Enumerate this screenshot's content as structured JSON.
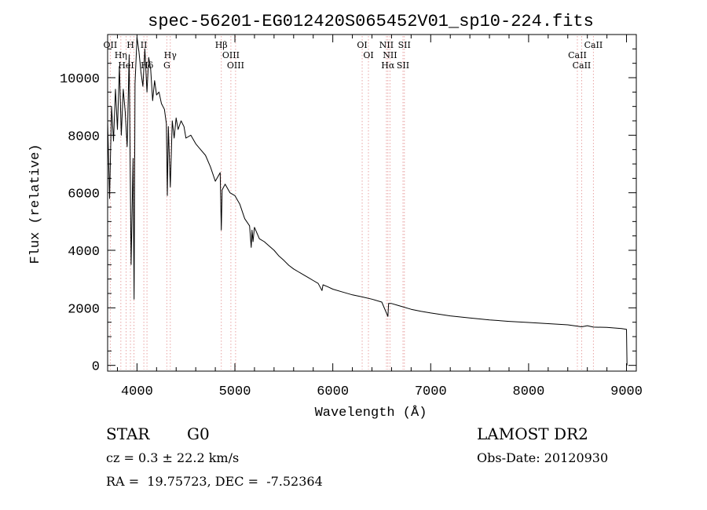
{
  "chart_data": {
    "type": "line",
    "title": "spec-56201-EG012420S065452V01_sp10-224.fits",
    "xlabel": "Wavelength (Å)",
    "ylabel": "Flux (relative)",
    "xlim": [
      3700,
      9100
    ],
    "ylim": [
      -200,
      11500
    ],
    "x_ticks": [
      4000,
      5000,
      6000,
      7000,
      8000,
      9000
    ],
    "x_tick_labels": [
      "4000",
      "5000",
      "6000",
      "7000",
      "8000",
      "9000"
    ],
    "y_ticks": [
      0,
      2000,
      4000,
      6000,
      8000,
      10000
    ],
    "y_tick_labels": [
      "0",
      "2000",
      "4000",
      "6000",
      "8000",
      "10000"
    ],
    "grid": false,
    "series": [
      {
        "x": [
          3700,
          3720,
          3740,
          3760,
          3780,
          3800,
          3820,
          3840,
          3860,
          3880,
          3900,
          3920,
          3940,
          3960,
          3970,
          3980,
          4000,
          4020,
          4040,
          4060,
          4080,
          4102,
          4120,
          4140,
          4160,
          4180,
          4200,
          4225,
          4250,
          4280,
          4300,
          4310,
          4320,
          4340,
          4360,
          4380,
          4400,
          4420,
          4450,
          4480,
          4500,
          4550,
          4600,
          4650,
          4700,
          4750,
          4800,
          4850,
          4861,
          4870,
          4900,
          4950,
          5000,
          5050,
          5100,
          5150,
          5167,
          5175,
          5185,
          5200,
          5250,
          5300,
          5350,
          5400,
          5450,
          5500,
          5550,
          5600,
          5650,
          5700,
          5750,
          5800,
          5850,
          5890,
          5900,
          5950,
          6000,
          6100,
          6200,
          6300,
          6400,
          6500,
          6563,
          6570,
          6600,
          6700,
          6800,
          6900,
          7000,
          7200,
          7400,
          7600,
          7800,
          8000,
          8200,
          8400,
          8542,
          8600,
          8662,
          8800,
          8950,
          9000,
          9005
        ],
        "y": [
          8500,
          5800,
          9000,
          7800,
          9600,
          8200,
          10400,
          8000,
          9600,
          8800,
          7600,
          10800,
          3500,
          7200,
          2300,
          9800,
          11400,
          10900,
          10200,
          9700,
          11000,
          9500,
          10700,
          10300,
          9200,
          9900,
          9400,
          9500,
          9100,
          8900,
          8400,
          5900,
          8300,
          6200,
          8500,
          7900,
          8600,
          8200,
          8500,
          8300,
          7900,
          8000,
          7700,
          7500,
          7300,
          6900,
          6400,
          6700,
          4700,
          6100,
          6300,
          6000,
          5900,
          5600,
          5100,
          4850,
          4100,
          4700,
          4300,
          4800,
          4400,
          4300,
          4150,
          4000,
          3800,
          3650,
          3480,
          3350,
          3250,
          3150,
          3050,
          2950,
          2850,
          2600,
          2800,
          2730,
          2650,
          2550,
          2450,
          2380,
          2300,
          2200,
          1700,
          2150,
          2150,
          2050,
          1950,
          1880,
          1820,
          1720,
          1650,
          1580,
          1530,
          1490,
          1450,
          1410,
          1340,
          1380,
          1330,
          1320,
          1280,
          1250,
          0
        ]
      }
    ],
    "lines": [
      {
        "label": "OII",
        "x": 3727
      },
      {
        "label": "Hη",
        "x": 3835
      },
      {
        "label": "HeI",
        "x": 3889
      },
      {
        "label": "H",
        "x": 3933
      },
      {
        "label": "",
        "x": 3969
      },
      {
        "label": "Hδ",
        "x": 4102
      },
      {
        "label": "II",
        "x": 4070
      },
      {
        "label": "Hγ",
        "x": 4340
      },
      {
        "label": "G",
        "x": 4305
      },
      {
        "label": "Hβ",
        "x": 4861
      },
      {
        "label": "OIII",
        "x": 4959
      },
      {
        "label": "OIII",
        "x": 5007
      },
      {
        "label": "OI",
        "x": 6300
      },
      {
        "label": "OI",
        "x": 6364
      },
      {
        "label": "Hα",
        "x": 6563
      },
      {
        "label": "NII",
        "x": 6548
      },
      {
        "label": "NII",
        "x": 6584
      },
      {
        "label": "SII",
        "x": 6717
      },
      {
        "label": "SII",
        "x": 6731
      },
      {
        "label": "CaII",
        "x": 8498
      },
      {
        "label": "CaII",
        "x": 8542
      },
      {
        "label": "CaII",
        "x": 8662
      }
    ]
  },
  "info": {
    "object_class": "STAR",
    "subclass": "G0",
    "survey": "LAMOST DR2",
    "redshift": "cz = 0.3 ± 22.2 km/s",
    "obs_date": "Obs-Date: 20120930",
    "coordinates": "RA =  19.75723, DEC =  -7.52364"
  }
}
